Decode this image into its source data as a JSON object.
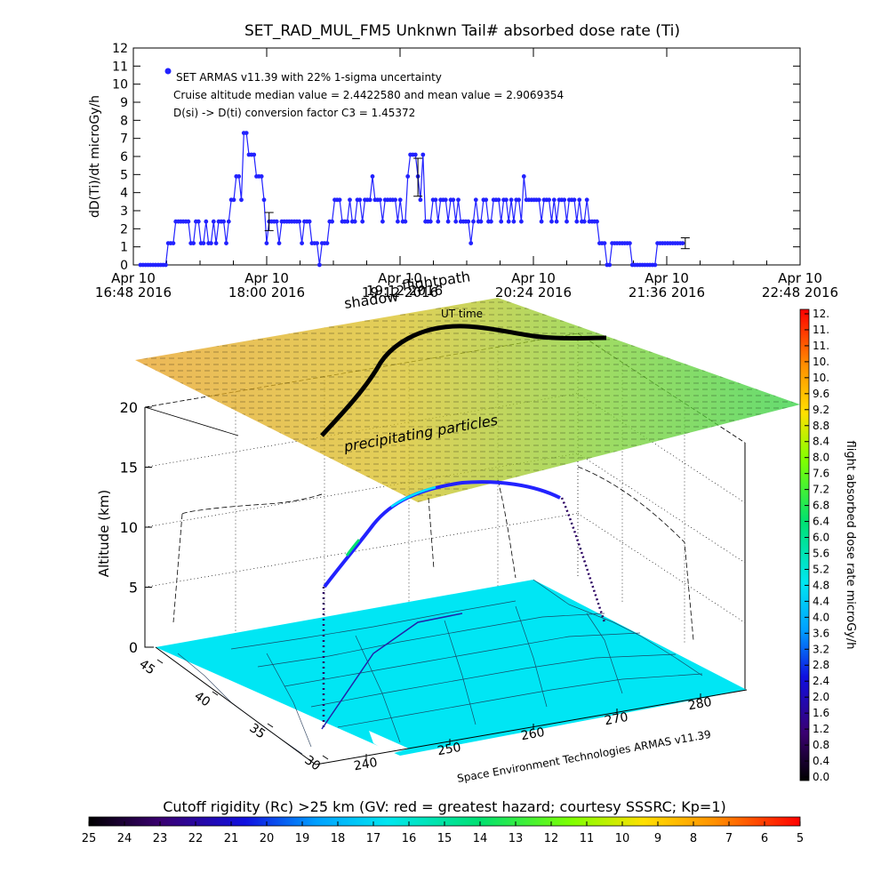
{
  "chart_data": [
    {
      "type": "scatter",
      "title": "SET_RAD_MUL_FM5 Unknwn Tail#  absorbed dose rate (Ti)",
      "ylabel": "dD(Ti)/dt microGy/h",
      "ylim": [
        0,
        12
      ],
      "yticks": [
        "0",
        "1",
        "2",
        "3",
        "4",
        "5",
        "6",
        "7",
        "8",
        "9",
        "10",
        "11",
        "12"
      ],
      "xticks": [
        {
          "l1": "Apr 10",
          "l2": "16:48 2016"
        },
        {
          "l1": "Apr 10",
          "l2": "18:00 2016"
        },
        {
          "l1": "Apr 10",
          "l2": "19:12 2016"
        },
        {
          "l1": "Apr 10",
          "l2": "20:24 2016"
        },
        {
          "l1": "Apr 10",
          "l2": "21:36 2016"
        },
        {
          "l1": "Apr 10",
          "l2": "22:48 2016"
        }
      ],
      "legend": {
        "series_label": "SET ARMAS v11.39 with 22% 1-sigma uncertainty",
        "line2": "Cruise altitude median value = 2.4422580 and mean value = 2.9069354",
        "line3": "D(si) -> D(ti) conversion factor C3 = 1.45372"
      },
      "color": "#2222ff",
      "values": [
        0,
        0,
        0,
        0,
        0,
        0,
        0,
        0,
        0,
        0,
        0,
        1.2,
        1.2,
        1.2,
        2.4,
        2.4,
        2.4,
        2.4,
        2.4,
        2.4,
        1.2,
        1.2,
        2.4,
        2.4,
        1.2,
        1.2,
        2.4,
        1.2,
        1.2,
        2.4,
        1.2,
        2.4,
        2.4,
        2.4,
        1.2,
        2.4,
        3.6,
        3.6,
        4.9,
        4.9,
        3.6,
        7.3,
        7.3,
        6.1,
        6.1,
        6.1,
        4.9,
        4.9,
        4.9,
        3.6,
        1.2,
        2.4,
        2.4,
        2.4,
        2.4,
        1.2,
        2.4,
        2.4,
        2.4,
        2.4,
        2.4,
        2.4,
        2.4,
        2.4,
        1.2,
        2.4,
        2.4,
        2.4,
        1.2,
        1.2,
        1.2,
        0,
        1.2,
        1.2,
        1.2,
        2.4,
        2.4,
        3.6,
        3.6,
        3.6,
        2.4,
        2.4,
        2.4,
        3.6,
        2.4,
        2.4,
        3.6,
        3.6,
        2.4,
        3.6,
        3.6,
        3.6,
        4.9,
        3.6,
        3.6,
        3.6,
        2.4,
        3.6,
        3.6,
        3.6,
        3.6,
        3.6,
        2.4,
        3.6,
        2.4,
        2.4,
        4.9,
        6.1,
        6.1,
        6.1,
        4.9,
        3.6,
        6.1,
        2.4,
        2.4,
        2.4,
        3.6,
        3.6,
        2.4,
        3.6,
        3.6,
        3.6,
        2.4,
        3.6,
        3.6,
        2.4,
        3.6,
        2.4,
        2.4,
        2.4,
        2.4,
        1.2,
        2.4,
        3.6,
        2.4,
        2.4,
        3.6,
        3.6,
        2.4,
        2.4,
        3.6,
        3.6,
        3.6,
        2.4,
        3.6,
        3.6,
        2.4,
        3.6,
        2.4,
        3.6,
        3.6,
        2.4,
        4.9,
        3.6,
        3.6,
        3.6,
        3.6,
        3.6,
        3.6,
        2.4,
        3.6,
        3.6,
        3.6,
        2.4,
        3.6,
        2.4,
        3.6,
        3.6,
        3.6,
        2.4,
        3.6,
        3.6,
        3.6,
        2.4,
        3.6,
        2.4,
        2.4,
        3.6,
        2.4,
        2.4,
        2.4,
        2.4,
        1.2,
        1.2,
        1.2,
        0,
        0,
        1.2,
        1.2,
        1.2,
        1.2,
        1.2,
        1.2,
        1.2,
        1.2,
        0,
        0,
        0,
        0,
        0,
        0,
        0,
        0,
        0,
        0,
        1.2,
        1.2,
        1.2,
        1.2,
        1.2,
        1.2,
        1.2,
        1.2,
        1.2,
        1.2,
        1.2
      ],
      "errorbars": [
        {
          "index": 51,
          "value": 2.4,
          "low": 1.9,
          "high": 2.9
        },
        {
          "index": 110,
          "value": 4.9,
          "low": 3.8,
          "high": 5.9
        },
        {
          "index": 216,
          "value": 1.2,
          "low": 0.9,
          "high": 1.5
        }
      ]
    },
    {
      "type": "scatter",
      "subtype": "3d-flight-profile",
      "zlabel": "Altitude (km)",
      "zticks": [
        "0",
        "5",
        "10",
        "15",
        "20"
      ],
      "lat_ticks": [
        "45",
        "40",
        "35",
        "30"
      ],
      "lon_ticks": [
        "240",
        "250",
        "260",
        "270",
        "280"
      ],
      "annotations": {
        "flightpath": "flightpath",
        "shadow": "shadow",
        "ut_time": "UT time",
        "overlap_time": "19:12 2016",
        "precip": "precipitating particles",
        "credit": "Space Environment Technologies ARMAS v11.39"
      },
      "colorbar": {
        "label": "flight absorbed dose rate microGy/h",
        "ticks": [
          "12.",
          "11.",
          "11.",
          "10.",
          "10.",
          "9.6",
          "9.2",
          "8.8",
          "8.4",
          "8.0",
          "7.6",
          "7.2",
          "6.8",
          "6.4",
          "6.0",
          "5.6",
          "5.2",
          "4.8",
          "4.4",
          "4.0",
          "3.6",
          "3.2",
          "2.8",
          "2.4",
          "2.0",
          "1.6",
          "1.2",
          "0.8",
          "0.4",
          "0.0"
        ],
        "min": 0,
        "max": 12
      }
    },
    {
      "type": "heatmap",
      "subtype": "colorbar",
      "title": "Cutoff rigidity (Rc) >25 km (GV: red = greatest hazard; courtesy SSSRC; Kp=1)",
      "ticks": [
        "25",
        "24",
        "23",
        "22",
        "21",
        "20",
        "19",
        "18",
        "17",
        "16",
        "15",
        "14",
        "13",
        "12",
        "11",
        "10",
        "9",
        "8",
        "7",
        "6",
        "5"
      ],
      "range": [
        25,
        5
      ]
    }
  ]
}
